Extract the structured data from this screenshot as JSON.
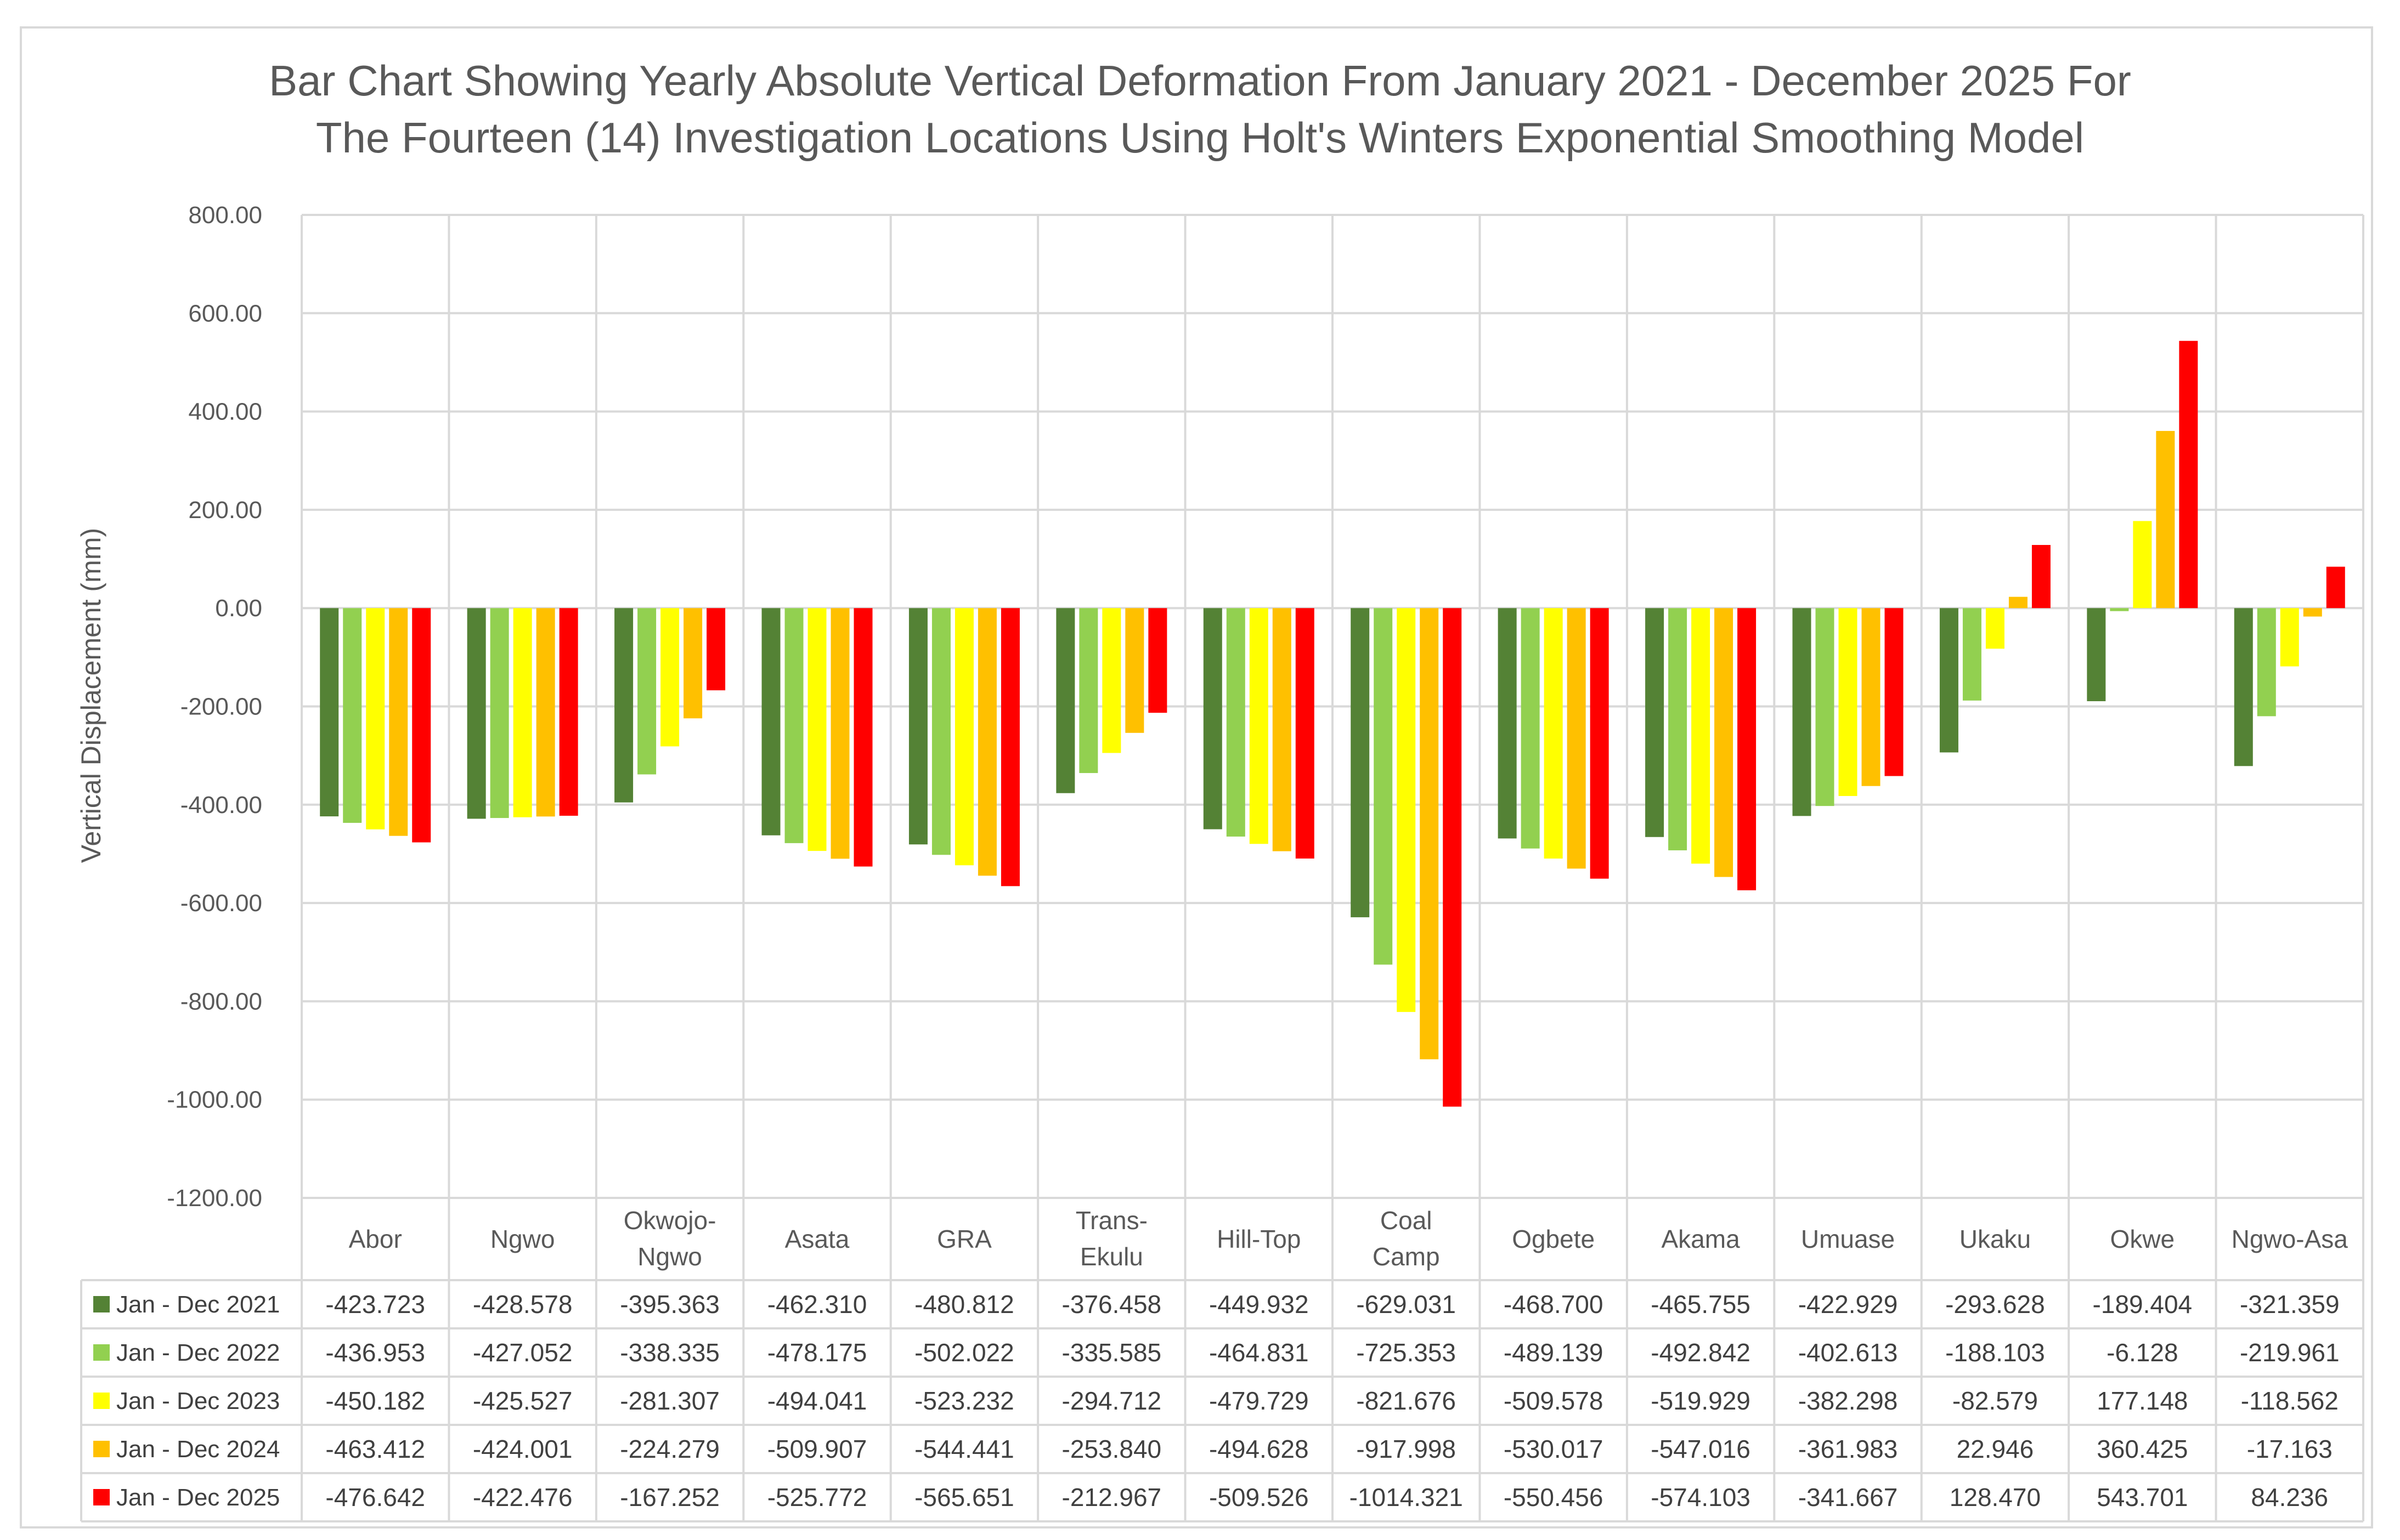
{
  "chart_data": {
    "type": "bar",
    "title_lines": [
      "Bar Chart Showing Yearly Absolute Vertical Deformation From January 2021 - December 2025 For",
      "The Fourteen (14) Investigation Locations Using Holt's Winters Exponential Smoothing Model"
    ],
    "ylabel": "Vertical Displacement (mm)",
    "xlabel": "",
    "ylim": [
      -1200,
      800
    ],
    "y_ticks": [
      "800.00",
      "600.00",
      "400.00",
      "200.00",
      "0.00",
      "-200.00",
      "-400.00",
      "-600.00",
      "-800.00",
      "-1000.00",
      "-1200.00"
    ],
    "grid": true,
    "legend": "data table",
    "categories": [
      [
        "Abor"
      ],
      [
        "Ngwo"
      ],
      [
        "Okwojo-",
        "Ngwo"
      ],
      [
        "Asata"
      ],
      [
        "GRA"
      ],
      [
        "Trans-",
        "Ekulu"
      ],
      [
        "Hill-Top"
      ],
      [
        "Coal",
        "Camp"
      ],
      [
        "Ogbete"
      ],
      [
        "Akama"
      ],
      [
        "Umuase"
      ],
      [
        "Ukaku"
      ],
      [
        "Okwe"
      ],
      [
        "Ngwo-Asa"
      ]
    ],
    "series": [
      {
        "name": "Jan - Dec 2021",
        "color": "#548235",
        "values": [
          -423.723,
          -428.578,
          -395.363,
          -462.31,
          -480.812,
          -376.458,
          -449.932,
          -629.031,
          -468.7,
          -465.755,
          -422.929,
          -293.628,
          -189.404,
          -321.359
        ],
        "labels": [
          "-423.723",
          "-428.578",
          "-395.363",
          "-462.310",
          "-480.812",
          "-376.458",
          "-449.932",
          "-629.031",
          "-468.700",
          "-465.755",
          "-422.929",
          "-293.628",
          "-189.404",
          "-321.359"
        ]
      },
      {
        "name": "Jan - Dec 2022",
        "color": "#92d050",
        "values": [
          -436.953,
          -427.052,
          -338.335,
          -478.175,
          -502.022,
          -335.585,
          -464.831,
          -725.353,
          -489.139,
          -492.842,
          -402.613,
          -188.103,
          -6.128,
          -219.961
        ],
        "labels": [
          "-436.953",
          "-427.052",
          "-338.335",
          "-478.175",
          "-502.022",
          "-335.585",
          "-464.831",
          "-725.353",
          "-489.139",
          "-492.842",
          "-402.613",
          "-188.103",
          "-6.128",
          "-219.961"
        ]
      },
      {
        "name": "Jan - Dec 2023",
        "color": "#ffff00",
        "values": [
          -450.182,
          -425.527,
          -281.307,
          -494.041,
          -523.232,
          -294.712,
          -479.729,
          -821.676,
          -509.578,
          -519.929,
          -382.298,
          -82.579,
          177.148,
          -118.562
        ],
        "labels": [
          "-450.182",
          "-425.527",
          "-281.307",
          "-494.041",
          "-523.232",
          "-294.712",
          "-479.729",
          "-821.676",
          "-509.578",
          "-519.929",
          "-382.298",
          "-82.579",
          "177.148",
          "-118.562"
        ]
      },
      {
        "name": "Jan - Dec 2024",
        "color": "#ffc000",
        "values": [
          -463.412,
          -424.001,
          -224.279,
          -509.907,
          -544.441,
          -253.84,
          -494.628,
          -917.998,
          -530.017,
          -547.016,
          -361.983,
          22.946,
          360.425,
          -17.163
        ],
        "labels": [
          "-463.412",
          "-424.001",
          "-224.279",
          "-509.907",
          "-544.441",
          "-253.840",
          "-494.628",
          "-917.998",
          "-530.017",
          "-547.016",
          "-361.983",
          "22.946",
          "360.425",
          "-17.163"
        ]
      },
      {
        "name": "Jan - Dec 2025",
        "color": "#ff0000",
        "values": [
          -476.642,
          -422.476,
          -167.252,
          -525.772,
          -565.651,
          -212.967,
          -509.526,
          -1014.321,
          -550.456,
          -574.103,
          -341.667,
          128.47,
          543.701,
          84.236
        ],
        "labels": [
          "-476.642",
          "-422.476",
          "-167.252",
          "-525.772",
          "-565.651",
          "-212.967",
          "-509.526",
          "-1014.321",
          "-550.456",
          "-574.103",
          "-341.667",
          "128.470",
          "543.701",
          "84.236"
        ]
      }
    ]
  }
}
